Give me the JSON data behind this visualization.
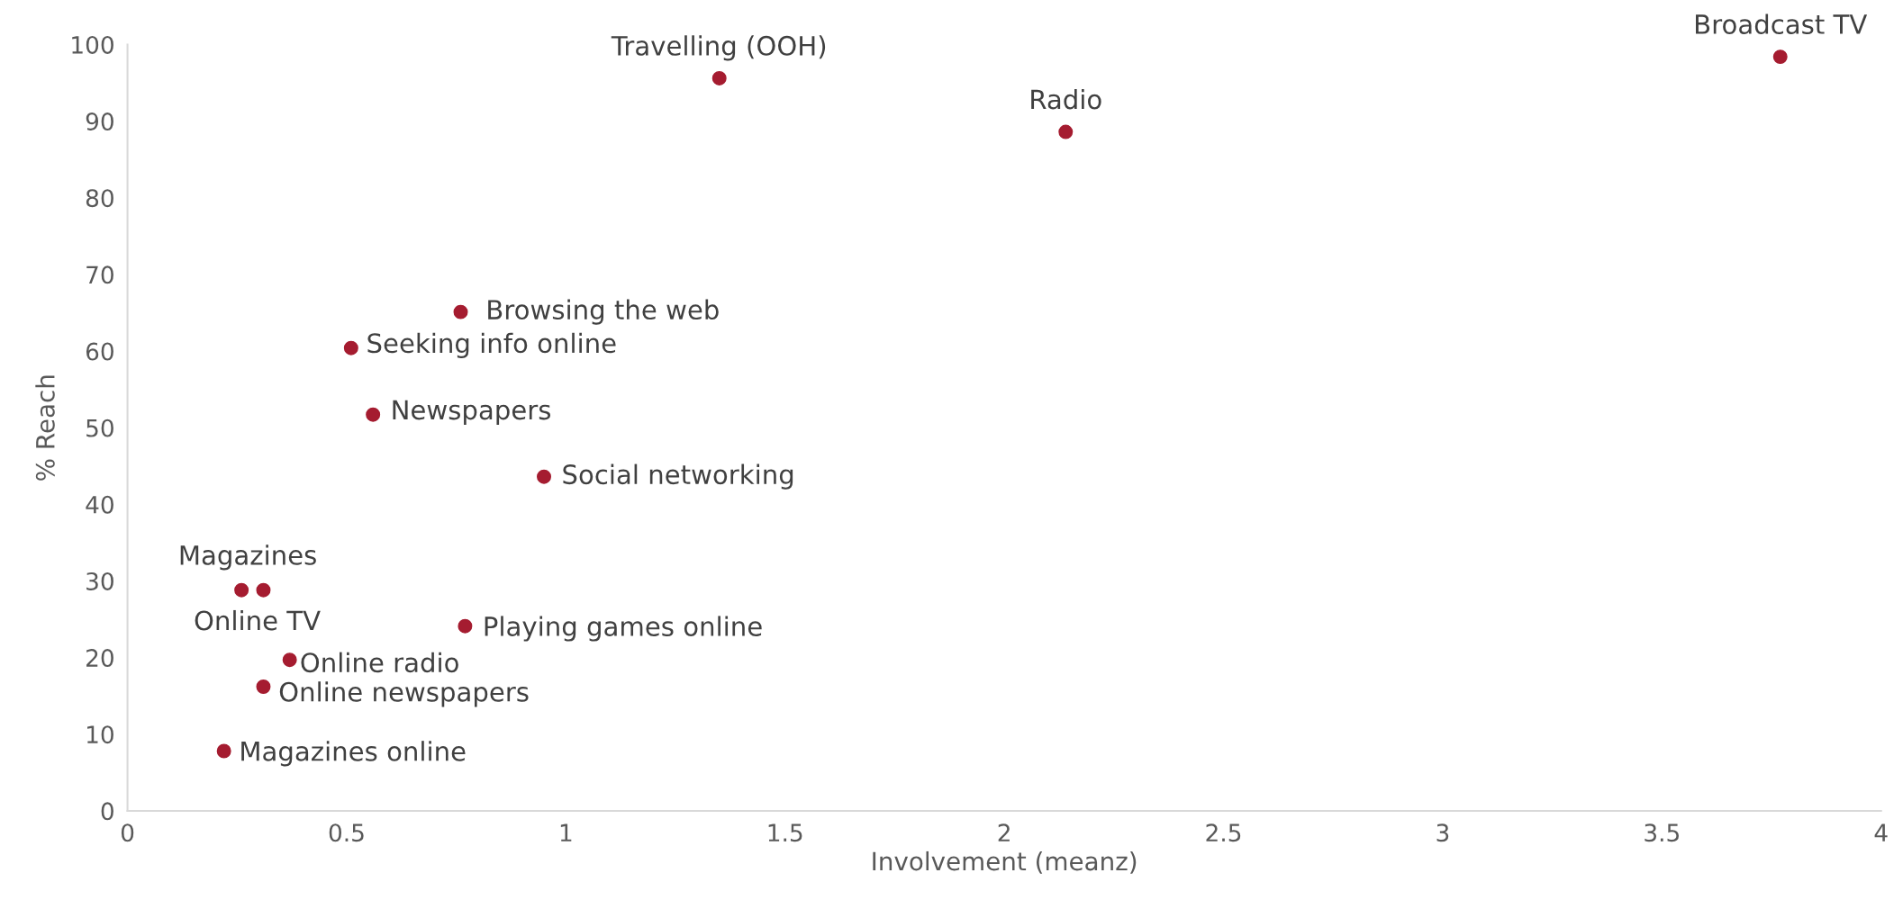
{
  "chart_data": {
    "type": "scatter",
    "xlabel": "Involvement (meanz)",
    "ylabel": "% Reach",
    "series": [
      {
        "color": "#a51c30",
        "x": [
          3.77,
          1.35,
          2.14,
          0.76,
          0.51,
          0.56,
          0.95,
          0.26,
          0.31,
          0.77,
          0.37,
          0.31,
          0.22
        ],
        "values": [
          98.4,
          95.6,
          88.6,
          65.1,
          60.4,
          51.7,
          43.6,
          28.8,
          28.8,
          24.1,
          19.7,
          16.2,
          7.8
        ]
      }
    ],
    "annotations": [
      {
        "text": "Broadcast TV",
        "x": 3.77,
        "y": 98.4
      },
      {
        "text": "Travelling (OOH)",
        "x": 1.35,
        "y": 95.6
      },
      {
        "text": "Radio",
        "x": 2.14,
        "y": 88.6
      },
      {
        "text": "Browsing the web",
        "x": 0.76,
        "y": 65.1
      },
      {
        "text": "Seeking info online",
        "x": 0.51,
        "y": 60.4
      },
      {
        "text": "Newspapers",
        "x": 0.56,
        "y": 51.7
      },
      {
        "text": "Social networking",
        "x": 0.95,
        "y": 43.6
      },
      {
        "text": "Magazines",
        "x": 0.26,
        "y": 28.8
      },
      {
        "text": "Online TV",
        "x": 0.31,
        "y": 28.8
      },
      {
        "text": "Playing games online",
        "x": 0.77,
        "y": 24.1
      },
      {
        "text": "Online radio",
        "x": 0.37,
        "y": 19.7
      },
      {
        "text": "Online newspapers",
        "x": 0.31,
        "y": 16.2
      },
      {
        "text": "Magazines online",
        "x": 0.22,
        "y": 7.8
      }
    ],
    "xlim": [
      0,
      4
    ],
    "xticks": [
      0,
      0.5,
      1,
      1.5,
      2,
      2.5,
      3,
      3.5,
      4
    ],
    "ylim": [
      0,
      100
    ],
    "yticks": [
      0,
      10,
      20,
      30,
      40,
      50,
      60,
      70,
      80,
      90,
      100
    ],
    "grid": false,
    "marker": "circle"
  }
}
